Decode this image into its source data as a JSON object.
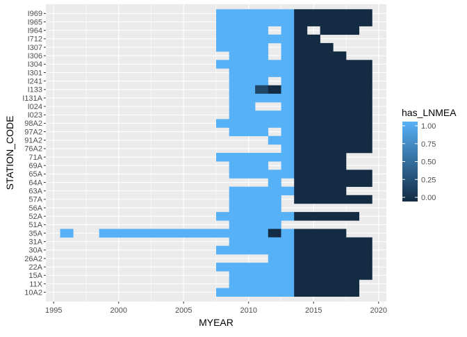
{
  "chart_data": {
    "type": "heatmap",
    "title": "",
    "xlabel": "MYEAR",
    "ylabel": "STATION_CODE",
    "xlim": [
      1994.4,
      2020.6
    ],
    "x_ticks": [
      1995,
      2000,
      2005,
      2010,
      2015,
      2020
    ],
    "x_tick_labels": [
      "1995",
      "2000",
      "2005",
      "2010",
      "2015",
      "2020"
    ],
    "grid": true,
    "legend": {
      "title": "has_LNMEA",
      "position": "right",
      "breaks": [
        1.0,
        0.75,
        0.5,
        0.25,
        0.0
      ],
      "break_labels": [
        "1.00",
        "0.75",
        "0.50",
        "0.25",
        "0.00"
      ],
      "low_color": "#132B43",
      "high_color": "#56B1F7"
    },
    "stations": [
      "I969",
      "I965",
      "I964",
      "I712",
      "I307",
      "I306",
      "I304",
      "I301",
      "I241",
      "I133",
      "I131A",
      "I024",
      "I023",
      "98A2",
      "97A2",
      "91A2",
      "76A2",
      "71A",
      "69A",
      "65A",
      "64A",
      "63A",
      "57A",
      "56A",
      "52A",
      "51A",
      "35A",
      "31A",
      "30A",
      "26A2",
      "22A",
      "15A",
      "11X",
      "10A2"
    ],
    "rows": [
      {
        "station": "I969",
        "cells": [
          [
            2008,
            2013,
            1
          ],
          [
            2014,
            2019,
            0
          ]
        ]
      },
      {
        "station": "I965",
        "cells": [
          [
            2008,
            2013,
            1
          ],
          [
            2014,
            2019,
            0
          ]
        ]
      },
      {
        "station": "I964",
        "cells": [
          [
            2008,
            2011,
            1
          ],
          [
            2013,
            2013,
            1
          ],
          [
            2014,
            2014,
            0
          ],
          [
            2016,
            2018,
            0
          ]
        ]
      },
      {
        "station": "I712",
        "cells": [
          [
            2008,
            2013,
            1
          ],
          [
            2014,
            2015,
            0
          ]
        ]
      },
      {
        "station": "I307",
        "cells": [
          [
            2008,
            2011,
            1
          ],
          [
            2013,
            2013,
            1
          ],
          [
            2014,
            2016,
            0
          ]
        ]
      },
      {
        "station": "I306",
        "cells": [
          [
            2009,
            2011,
            1
          ],
          [
            2013,
            2013,
            1
          ],
          [
            2014,
            2017,
            0
          ]
        ]
      },
      {
        "station": "I304",
        "cells": [
          [
            2008,
            2013,
            1
          ],
          [
            2014,
            2019,
            0
          ]
        ]
      },
      {
        "station": "I301",
        "cells": [
          [
            2009,
            2013,
            1
          ],
          [
            2014,
            2019,
            0
          ]
        ]
      },
      {
        "station": "I241",
        "cells": [
          [
            2009,
            2011,
            1
          ],
          [
            2013,
            2013,
            1
          ],
          [
            2014,
            2019,
            0
          ]
        ]
      },
      {
        "station": "I133",
        "cells": [
          [
            2009,
            2010,
            1
          ],
          [
            2011,
            2011,
            0.2
          ],
          [
            2012,
            2012,
            0
          ],
          [
            2013,
            2013,
            1
          ],
          [
            2014,
            2019,
            0
          ]
        ]
      },
      {
        "station": "I131A",
        "cells": [
          [
            2009,
            2013,
            1
          ],
          [
            2014,
            2019,
            0
          ]
        ]
      },
      {
        "station": "I024",
        "cells": [
          [
            2009,
            2010,
            1
          ],
          [
            2013,
            2013,
            1
          ],
          [
            2014,
            2019,
            0
          ]
        ]
      },
      {
        "station": "I023",
        "cells": [
          [
            2009,
            2013,
            1
          ],
          [
            2014,
            2019,
            0
          ]
        ]
      },
      {
        "station": "98A2",
        "cells": [
          [
            2008,
            2013,
            1
          ],
          [
            2014,
            2019,
            0
          ]
        ]
      },
      {
        "station": "97A2",
        "cells": [
          [
            2009,
            2011,
            1
          ],
          [
            2013,
            2013,
            1
          ],
          [
            2014,
            2019,
            0
          ]
        ]
      },
      {
        "station": "91A2",
        "cells": [
          [
            2012,
            2013,
            1
          ],
          [
            2014,
            2019,
            0
          ]
        ]
      },
      {
        "station": "76A2",
        "cells": [
          [
            2013,
            2013,
            1
          ],
          [
            2014,
            2019,
            0
          ]
        ]
      },
      {
        "station": "71A",
        "cells": [
          [
            2008,
            2013,
            1
          ],
          [
            2014,
            2017,
            0
          ]
        ]
      },
      {
        "station": "69A",
        "cells": [
          [
            2009,
            2011,
            1
          ],
          [
            2013,
            2013,
            1
          ],
          [
            2014,
            2017,
            0
          ]
        ]
      },
      {
        "station": "65A",
        "cells": [
          [
            2009,
            2013,
            1
          ],
          [
            2014,
            2019,
            0
          ]
        ]
      },
      {
        "station": "64A",
        "cells": [
          [
            2012,
            2012,
            1
          ],
          [
            2014,
            2019,
            0
          ]
        ]
      },
      {
        "station": "63A",
        "cells": [
          [
            2009,
            2013,
            1
          ],
          [
            2014,
            2017,
            0
          ]
        ]
      },
      {
        "station": "57A",
        "cells": [
          [
            2009,
            2012,
            1
          ],
          [
            2014,
            2019,
            0
          ]
        ]
      },
      {
        "station": "56A",
        "cells": [
          [
            2009,
            2012,
            1
          ]
        ]
      },
      {
        "station": "52A",
        "cells": [
          [
            2008,
            2012,
            1
          ],
          [
            2013,
            2013,
            1
          ],
          [
            2014,
            2018,
            0
          ]
        ]
      },
      {
        "station": "51A",
        "cells": [
          [
            2009,
            2012,
            1
          ]
        ]
      },
      {
        "station": "35A",
        "cells": [
          [
            1996,
            1996,
            1
          ],
          [
            1999,
            2011,
            1
          ],
          [
            2012,
            2012,
            0
          ],
          [
            2013,
            2013,
            1
          ],
          [
            2014,
            2017,
            0
          ]
        ]
      },
      {
        "station": "31A",
        "cells": [
          [
            2009,
            2013,
            1
          ],
          [
            2014,
            2019,
            0
          ]
        ]
      },
      {
        "station": "30A",
        "cells": [
          [
            2008,
            2013,
            1
          ],
          [
            2014,
            2019,
            0
          ]
        ]
      },
      {
        "station": "26A2",
        "cells": [
          [
            2012,
            2013,
            1
          ],
          [
            2014,
            2019,
            0
          ]
        ]
      },
      {
        "station": "22A",
        "cells": [
          [
            2008,
            2013,
            1
          ],
          [
            2014,
            2019,
            0
          ]
        ]
      },
      {
        "station": "15A",
        "cells": [
          [
            2009,
            2013,
            1
          ],
          [
            2014,
            2019,
            0
          ]
        ]
      },
      {
        "station": "11X",
        "cells": [
          [
            2009,
            2013,
            1
          ],
          [
            2014,
            2018,
            0
          ]
        ]
      },
      {
        "station": "10A2",
        "cells": [
          [
            2008,
            2013,
            1
          ],
          [
            2014,
            2018,
            0
          ]
        ]
      }
    ]
  }
}
